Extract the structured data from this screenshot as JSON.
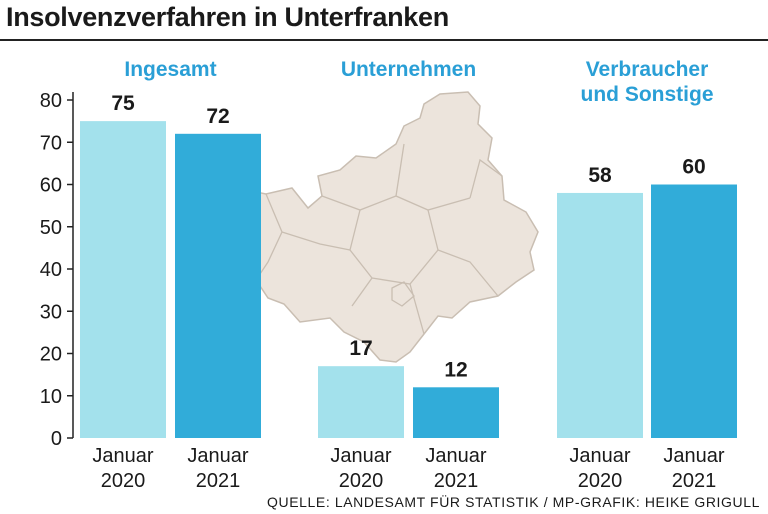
{
  "title": "Insolvenzverfahren in Unterfranken",
  "source": "QUELLE: LANDESAMT FÜR STATISTIK / MP-GRAFIK: HEIKE GRIGULL",
  "colors": {
    "january_2020": "#a3e1ec",
    "january_2021": "#31acd9",
    "group_title": "#2a9fd6",
    "map_fill": "#ece4dc",
    "map_stroke": "#c9beb2"
  },
  "chart_data": {
    "type": "bar",
    "title": "Insolvenzverfahren in Unterfranken",
    "ylim": [
      0,
      80
    ],
    "yticks": [
      0,
      10,
      20,
      30,
      40,
      50,
      60,
      70,
      80
    ],
    "grid": false,
    "groups": [
      {
        "title": [
          "Ingesamt"
        ],
        "bars": [
          {
            "label": [
              "Januar",
              "2020"
            ],
            "value": 75,
            "display": "75",
            "color": "#a3e1ec"
          },
          {
            "label": [
              "Januar",
              "2021"
            ],
            "value": 72,
            "display": "72",
            "color": "#31acd9"
          }
        ]
      },
      {
        "title": [
          "Unternehmen"
        ],
        "bars": [
          {
            "label": [
              "Januar",
              "2020"
            ],
            "value": 17,
            "display": "17",
            "color": "#a3e1ec"
          },
          {
            "label": [
              "Januar",
              "2021"
            ],
            "value": 12,
            "display": "12",
            "color": "#31acd9"
          }
        ]
      },
      {
        "title": [
          "Verbraucher",
          "und Sonstige"
        ],
        "bars": [
          {
            "label": [
              "Januar",
              "2020"
            ],
            "value": 58,
            "display": "58",
            "color": "#a3e1ec"
          },
          {
            "label": [
              "Januar",
              "2021"
            ],
            "value": 60,
            "display": "60",
            "color": "#31acd9"
          }
        ]
      }
    ]
  }
}
